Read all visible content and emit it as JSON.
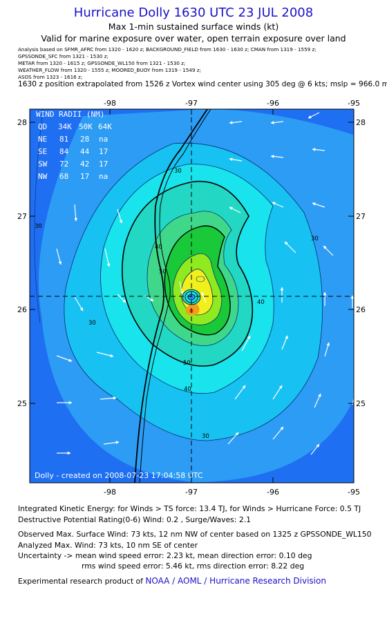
{
  "header": {
    "title": "Hurricane Dolly 1630 UTC 23 JUL 2008",
    "subtitle": "Max 1-min sustained surface winds (kt)",
    "validity": "Valid for marine exposure over water, open terrain exposure over land"
  },
  "sources": [
    "Analysis based on  SFMR_AFRC from 1320 - 1620 z;  BACKGROUND_FIELD from 1630 - 1630 z;  CMAN from 1319 - 1559 z;",
    "GPSSONDE_SFC from 1321 - 1530 z;",
    "METAR from 1320 - 1615 z;  GPSSONDE_WL150 from 1321 - 1530 z;",
    "WEATHER_FLOW from 1320 - 1555 z;  MOORED_BUOY from 1319 - 1549 z;",
    "ASOS from 1323 - 1616 z;"
  ],
  "position_note": "1630 z position extrapolated from 1526 z Vortex wind center using 305 deg @ 6 kts; mslp = 966.0 mb",
  "map": {
    "lon_ticks": [
      "-98",
      "-97",
      "-96",
      "-95"
    ],
    "lat_ticks": [
      "28",
      "27",
      "26",
      "25"
    ],
    "contour_labels": [
      "30",
      "30",
      "30",
      "30",
      "30",
      "40",
      "40",
      "40",
      "50",
      "50"
    ],
    "wind_radii": {
      "title": "WIND RADII (NM)",
      "header": [
        "QD",
        "34K",
        "50K",
        "64K"
      ],
      "rows": [
        [
          "NE",
          "81",
          "28",
          "na"
        ],
        [
          "SE",
          "84",
          "44",
          "17"
        ],
        [
          "SW",
          "72",
          "42",
          "17"
        ],
        [
          "NW",
          "68",
          "17",
          "na"
        ]
      ]
    },
    "creation_note": "Dolly - created on 2008-07-23 17:04:58 UTC",
    "colors": {
      "ocean_dark": "#1f6ff2",
      "band_20": "#2d9cf5",
      "band_30": "#17c2f2",
      "band_40": "#19e3ec",
      "band_45": "#22d8c4",
      "band_50": "#3fd88a",
      "band_55": "#19c93a",
      "band_60": "#8fea1f",
      "band_65": "#f0f01c",
      "band_70": "#f0a01c",
      "center": "#f04a10",
      "title": "#1a10c8"
    }
  },
  "footer": {
    "ike": "Integrated Kinetic Energy:  for Winds > TS force: 13.4 TJ,  for Winds > Hurricane Force: 0.5 TJ",
    "dpr": "Destructive Potential Rating(0-6)   Wind: 0.2 , Surge/Waves: 2.1",
    "obs_max": "Observed Max. Surface Wind: 73 kts, 12 nm NW of center based on 1325 z GPSSONDE_WL150",
    "ana_max": "Analyzed Max. Wind: 73 kts, 10 nm SE of center",
    "unc_1": "Uncertainty -> mean wind speed error: 2.23 kt,   mean direction error: 0.10 deg",
    "unc_2": "rms wind speed error: 5.46 kt,   rms direction error: 8.22 deg",
    "credit_prefix": "Experimental research product of",
    "credit_org": "NOAA / AOML / Hurricane Research Division"
  }
}
